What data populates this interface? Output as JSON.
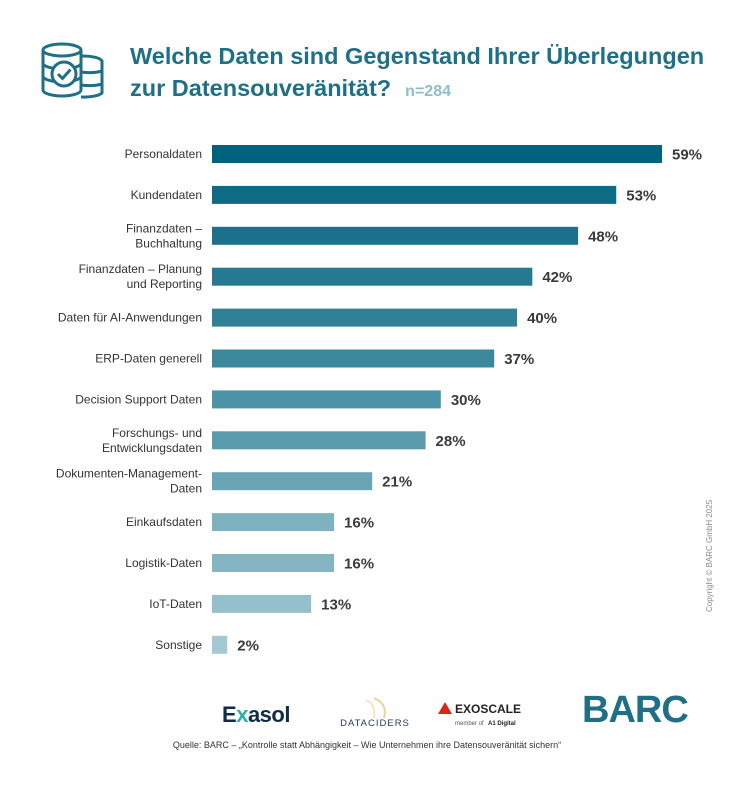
{
  "header": {
    "title_line1": "Welche Daten sind Gegenstand Ihrer Überlegungen",
    "title_line2": "zur Datensouveränität?",
    "sample_size": "n=284"
  },
  "chart_data": {
    "type": "bar",
    "orientation": "horizontal",
    "title": "Welche Daten sind Gegenstand Ihrer Überlegungen zur Datensouveränität?",
    "categories": [
      [
        "Personaldaten"
      ],
      [
        "Kundendaten"
      ],
      [
        "Finanzdaten –",
        "Buchhaltung"
      ],
      [
        "Finanzdaten – Planung",
        "und Reporting"
      ],
      [
        "Daten für AI-Anwendungen"
      ],
      [
        "ERP-Daten generell"
      ],
      [
        "Decision Support Daten"
      ],
      [
        "Forschungs- und",
        "Entwicklungsdaten"
      ],
      [
        "Dokumenten-Management-",
        "Daten"
      ],
      [
        "Einkaufsdaten"
      ],
      [
        "Logistik-Daten"
      ],
      [
        "IoT-Daten"
      ],
      [
        "Sonstige"
      ]
    ],
    "values": [
      59,
      53,
      48,
      42,
      40,
      37,
      30,
      28,
      21,
      16,
      16,
      13,
      2
    ],
    "value_labels": [
      "59%",
      "53%",
      "48%",
      "42%",
      "40%",
      "37%",
      "30%",
      "28%",
      "21%",
      "16%",
      "16%",
      "13%",
      "2%"
    ],
    "unit": "%",
    "xlim": [
      0,
      59
    ],
    "bar_colors": [
      "#00627f",
      "#0e6b86",
      "#1b718b",
      "#257a92",
      "#308096",
      "#3b889c",
      "#4d93a7",
      "#5a9aad",
      "#6aa5b6",
      "#7fb2c0",
      "#85b5c3",
      "#94bfcb",
      "#a4c9d3"
    ],
    "grid": false,
    "legend": "none"
  },
  "footer": {
    "copyright": "Copyright © BARC GmbH 2025",
    "source": "Quelle: BARC – „Kontrolle statt Abhängigkeit – Wie Unternehmen ihre Datensouveränität sichern“",
    "logos": {
      "exasol_a": "E",
      "exasol_b": "x",
      "exasol_c": "asol",
      "dataciders": "DATACIDERS",
      "exoscale": "EXOSCALE",
      "exoscale_sub1": "member of",
      "exoscale_sub2": "A1 Digital",
      "barc": "BARC"
    }
  }
}
